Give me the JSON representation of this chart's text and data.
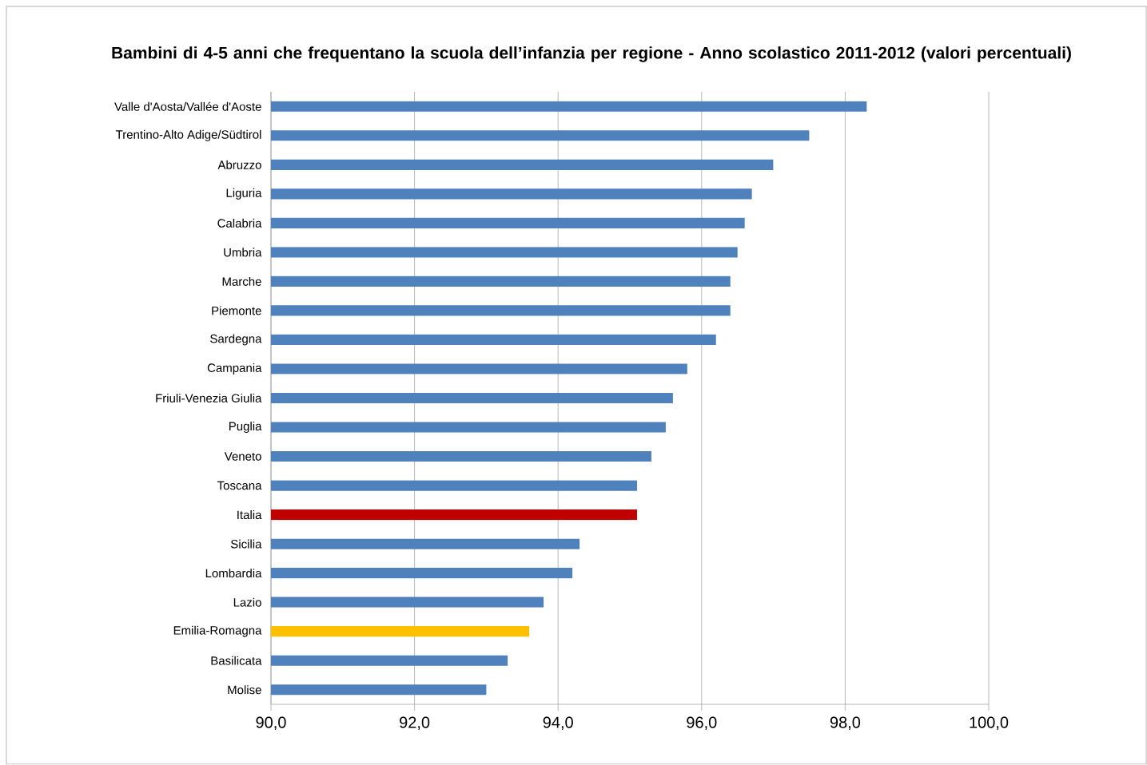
{
  "chart_data": {
    "type": "bar",
    "orientation": "horizontal",
    "title": "Bambini di 4-5 anni che frequentano la scuola dell’infanzia per regione - Anno scolastico 2011-2012 (valori percentuali)",
    "categories": [
      "Valle d'Aosta/Vallée d'Aoste",
      "Trentino-Alto Adige/Südtirol",
      "Abruzzo",
      "Liguria",
      "Calabria",
      "Umbria",
      "Marche",
      "Piemonte",
      "Sardegna",
      "Campania",
      "Friuli-Venezia Giulia",
      "Puglia",
      "Veneto",
      "Toscana",
      "Italia",
      "Sicilia",
      "Lombardia",
      "Lazio",
      "Emilia-Romagna",
      "Basilicata",
      "Molise"
    ],
    "values": [
      98.3,
      97.5,
      97.0,
      96.7,
      96.6,
      96.5,
      96.4,
      96.4,
      96.2,
      95.8,
      95.6,
      95.5,
      95.3,
      95.1,
      95.1,
      94.3,
      94.2,
      93.8,
      93.6,
      93.3,
      93.0
    ],
    "colors": [
      "#4f81bd",
      "#4f81bd",
      "#4f81bd",
      "#4f81bd",
      "#4f81bd",
      "#4f81bd",
      "#4f81bd",
      "#4f81bd",
      "#4f81bd",
      "#4f81bd",
      "#4f81bd",
      "#4f81bd",
      "#4f81bd",
      "#4f81bd",
      "#c00000",
      "#4f81bd",
      "#4f81bd",
      "#4f81bd",
      "#ffc000",
      "#4f81bd",
      "#4f81bd"
    ],
    "xlim": [
      90,
      100
    ],
    "xticks": [
      {
        "value": 90,
        "label": "90,0"
      },
      {
        "value": 92,
        "label": "92,0"
      },
      {
        "value": 94,
        "label": "94,0"
      },
      {
        "value": 96,
        "label": "96,0"
      },
      {
        "value": 98,
        "label": "98,0"
      },
      {
        "value": 100,
        "label": "100,0"
      }
    ],
    "grid": "x"
  }
}
